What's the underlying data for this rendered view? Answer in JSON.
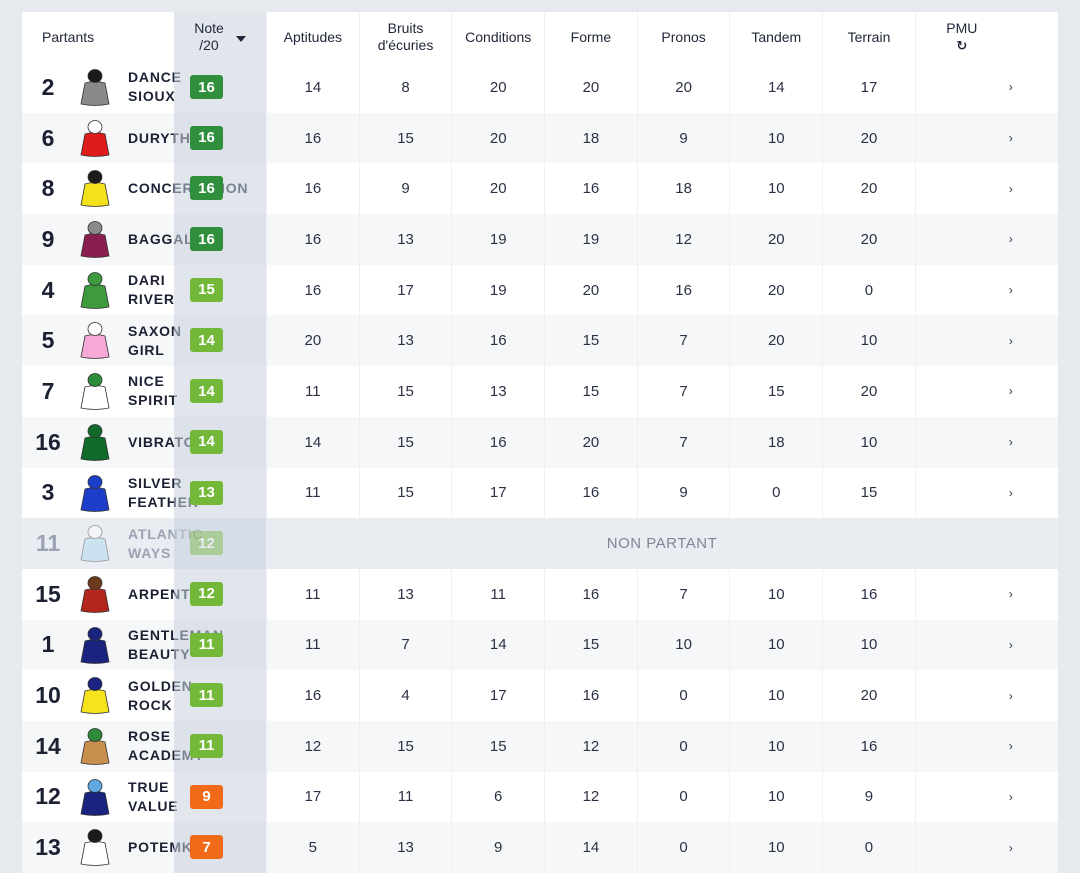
{
  "headers": {
    "partants": "Partants",
    "note_line1": "Note",
    "note_line2": "/20",
    "aptitudes": "Aptitudes",
    "bruits_line1": "Bruits",
    "bruits_line2": "d'écuries",
    "conditions": "Conditions",
    "forme": "Forme",
    "pronos": "Pronos",
    "tandem": "Tandem",
    "terrain": "Terrain",
    "pmu": "PMU",
    "refresh_icon": "↻"
  },
  "colors": {
    "dark_green": "#2f8f3c",
    "light_green": "#74b83a",
    "orange": "#f06a18"
  },
  "non_partant_label": "NON PARTANT",
  "rows": [
    {
      "num": "2",
      "name1": "DANCE",
      "name2": "SIOUX",
      "note": "16",
      "badge": "dark_green",
      "silk": "#8a8a8a",
      "cap": "#1b1b1b",
      "vals": [
        "14",
        "8",
        "20",
        "20",
        "20",
        "14",
        "17"
      ],
      "arrow": "›"
    },
    {
      "num": "6",
      "name1": "DURYTHM",
      "name2": "",
      "note": "16",
      "badge": "dark_green",
      "silk": "#e01b1b",
      "cap": "#ffffff",
      "vals": [
        "16",
        "15",
        "20",
        "18",
        "9",
        "10",
        "20"
      ],
      "arrow": "›"
    },
    {
      "num": "8",
      "name1": "CONCERTATION",
      "name2": "",
      "note": "16",
      "badge": "dark_green",
      "silk": "#f3e21a",
      "cap": "#1b1b1b",
      "vals": [
        "16",
        "9",
        "20",
        "16",
        "18",
        "10",
        "20"
      ],
      "arrow": "›"
    },
    {
      "num": "9",
      "name1": "BAGGALA",
      "name2": "",
      "note": "16",
      "badge": "dark_green",
      "silk": "#8a1f4f",
      "cap": "#8a8a8a",
      "vals": [
        "16",
        "13",
        "19",
        "19",
        "12",
        "20",
        "20"
      ],
      "arrow": "›"
    },
    {
      "num": "4",
      "name1": "DARI",
      "name2": "RIVER",
      "note": "15",
      "badge": "light_green",
      "silk": "#3d9a3d",
      "cap": "#3d9a3d",
      "vals": [
        "16",
        "17",
        "19",
        "20",
        "16",
        "20",
        "0"
      ],
      "arrow": "›"
    },
    {
      "num": "5",
      "name1": "SAXON",
      "name2": "GIRL",
      "note": "14",
      "badge": "light_green",
      "silk": "#f6a9d6",
      "cap": "#ffffff",
      "vals": [
        "20",
        "13",
        "16",
        "15",
        "7",
        "20",
        "10"
      ],
      "arrow": "›"
    },
    {
      "num": "7",
      "name1": "NICE",
      "name2": "SPIRIT",
      "note": "14",
      "badge": "light_green",
      "silk": "#ffffff",
      "cap": "#2e8b3a",
      "vals": [
        "11",
        "15",
        "13",
        "15",
        "7",
        "15",
        "20"
      ],
      "arrow": "›"
    },
    {
      "num": "16",
      "name1": "VIBRATO",
      "name2": "",
      "note": "14",
      "badge": "light_green",
      "silk": "#0f6b2a",
      "cap": "#0f6b2a",
      "vals": [
        "14",
        "15",
        "16",
        "20",
        "7",
        "18",
        "10"
      ],
      "arrow": "›"
    },
    {
      "num": "3",
      "name1": "SILVER",
      "name2": "FEATHER",
      "note": "13",
      "badge": "light_green",
      "silk": "#1c3ec9",
      "cap": "#1c3ec9",
      "vals": [
        "11",
        "15",
        "17",
        "16",
        "9",
        "0",
        "15"
      ],
      "arrow": "›"
    },
    {
      "num": "11",
      "name1": "ATLANTIC",
      "name2": "WAYS",
      "note": "12",
      "badge": "light_green",
      "silk": "#a9d6f2",
      "cap": "#ffffff",
      "np": true
    },
    {
      "num": "15",
      "name1": "ARPENTEUR",
      "name2": "",
      "note": "12",
      "badge": "light_green",
      "silk": "#b3261e",
      "cap": "#6b3a1a",
      "vals": [
        "11",
        "13",
        "11",
        "16",
        "7",
        "10",
        "16"
      ],
      "arrow": "›"
    },
    {
      "num": "1",
      "name1": "GENTLEMAN",
      "name2": "BEAUTY",
      "note": "11",
      "badge": "light_green",
      "silk": "#1a237e",
      "cap": "#1a237e",
      "vals": [
        "11",
        "7",
        "14",
        "15",
        "10",
        "10",
        "10"
      ],
      "arrow": "›"
    },
    {
      "num": "10",
      "name1": "GOLDEN",
      "name2": "ROCK",
      "note": "11",
      "badge": "light_green",
      "silk": "#f5e31c",
      "cap": "#1a237e",
      "vals": [
        "16",
        "4",
        "17",
        "16",
        "0",
        "10",
        "20"
      ],
      "arrow": "›"
    },
    {
      "num": "14",
      "name1": "ROSE",
      "name2": "ACADEMY",
      "note": "11",
      "badge": "light_green",
      "silk": "#c98f4e",
      "cap": "#2e8b3a",
      "vals": [
        "12",
        "15",
        "15",
        "12",
        "0",
        "10",
        "16"
      ],
      "arrow": "›"
    },
    {
      "num": "12",
      "name1": "TRUE",
      "name2": "VALUE",
      "note": "9",
      "badge": "orange",
      "silk": "#1a237e",
      "cap": "#5fa8e0",
      "vals": [
        "17",
        "11",
        "6",
        "12",
        "0",
        "10",
        "9"
      ],
      "arrow": "›"
    },
    {
      "num": "13",
      "name1": "POTEMKIN",
      "name2": "",
      "note": "7",
      "badge": "orange",
      "silk": "#ffffff",
      "cap": "#1b1b1b",
      "vals": [
        "5",
        "13",
        "9",
        "14",
        "0",
        "10",
        "0"
      ],
      "arrow": "›"
    }
  ]
}
